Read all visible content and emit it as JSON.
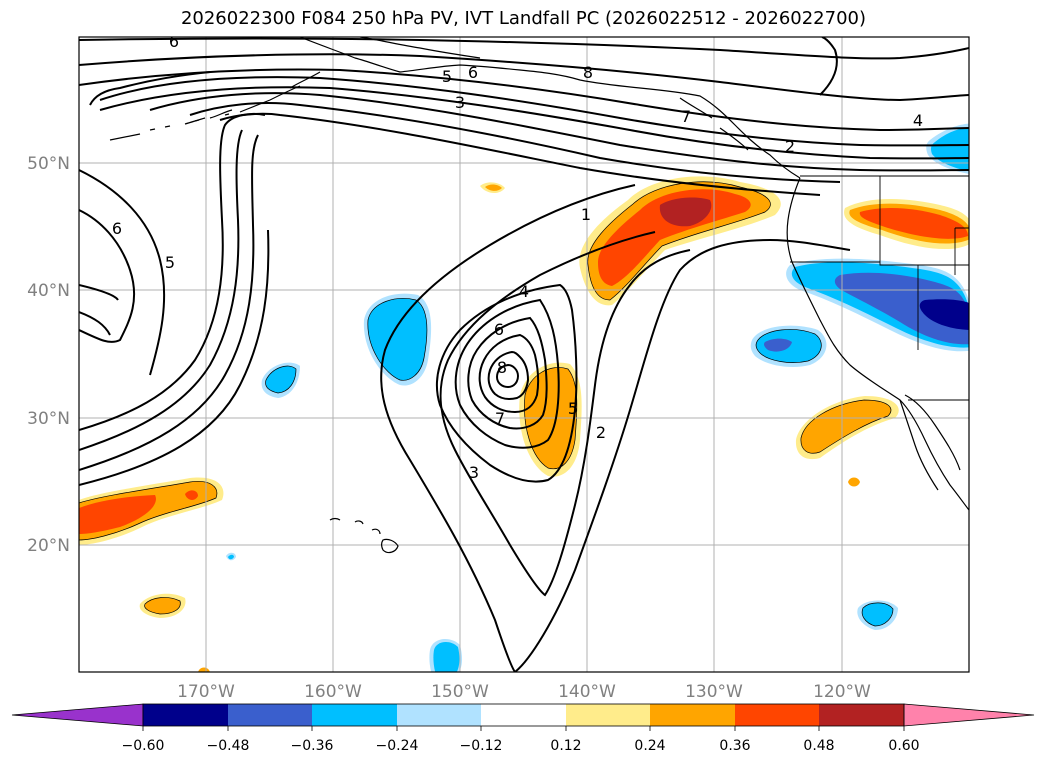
{
  "title": "2026022300 F084 250 hPa PV, IVT Landfall PC (2026022512 - 2026022700)",
  "lat_labels": [
    "50°N",
    "40°N",
    "30°N",
    "20°N"
  ],
  "lon_labels": [
    "170°W",
    "160°W",
    "150°W",
    "140°W",
    "130°W",
    "120°W"
  ],
  "colorbar": {
    "ticks": [
      "−0.60",
      "−0.48",
      "−0.36",
      "−0.24",
      "−0.12",
      "0.12",
      "0.24",
      "0.36",
      "0.48",
      "0.60"
    ],
    "colors": [
      "#9932CC",
      "#00008B",
      "#3A5FCD",
      "#00BFFF",
      "#B0E2FF",
      "#FFFFFF",
      "#FFEC8B",
      "#FFA500",
      "#FF4500",
      "#B22222",
      "#FF82AB"
    ]
  },
  "colors": {
    "neg_weak": "#B0E2FF",
    "neg_mid": "#00BFFF",
    "neg_strong": "#3A5FCD",
    "neg_extreme": "#00008B",
    "pos_weak": "#FFEC8B",
    "pos_mid": "#FFA500",
    "pos_strong": "#FF4500",
    "pos_extreme": "#B22222",
    "grid": "#b0b0b0",
    "contour": "#000000"
  },
  "contour_labels": [
    {
      "id": "pv-6-top",
      "text": "6"
    },
    {
      "id": "pv-5-top",
      "text": "5"
    },
    {
      "id": "pv-6-top2",
      "text": "6"
    },
    {
      "id": "pv-8-top",
      "text": "8"
    },
    {
      "id": "pv-3-top",
      "text": "3"
    },
    {
      "id": "pv-7-top",
      "text": "7"
    },
    {
      "id": "pv-4-ne",
      "text": "4"
    },
    {
      "id": "pv-2-ne",
      "text": "2"
    },
    {
      "id": "pv-6-west",
      "text": "6"
    },
    {
      "id": "pv-5-west",
      "text": "5"
    },
    {
      "id": "pv-1-mid",
      "text": "1"
    },
    {
      "id": "pv-4-low",
      "text": "4"
    },
    {
      "id": "pv-6-low",
      "text": "6"
    },
    {
      "id": "pv-8-low",
      "text": "8"
    },
    {
      "id": "pv-7-low",
      "text": "7"
    },
    {
      "id": "pv-5-low",
      "text": "5"
    },
    {
      "id": "pv-2-low",
      "text": "2"
    },
    {
      "id": "pv-3-low",
      "text": "3"
    }
  ]
}
